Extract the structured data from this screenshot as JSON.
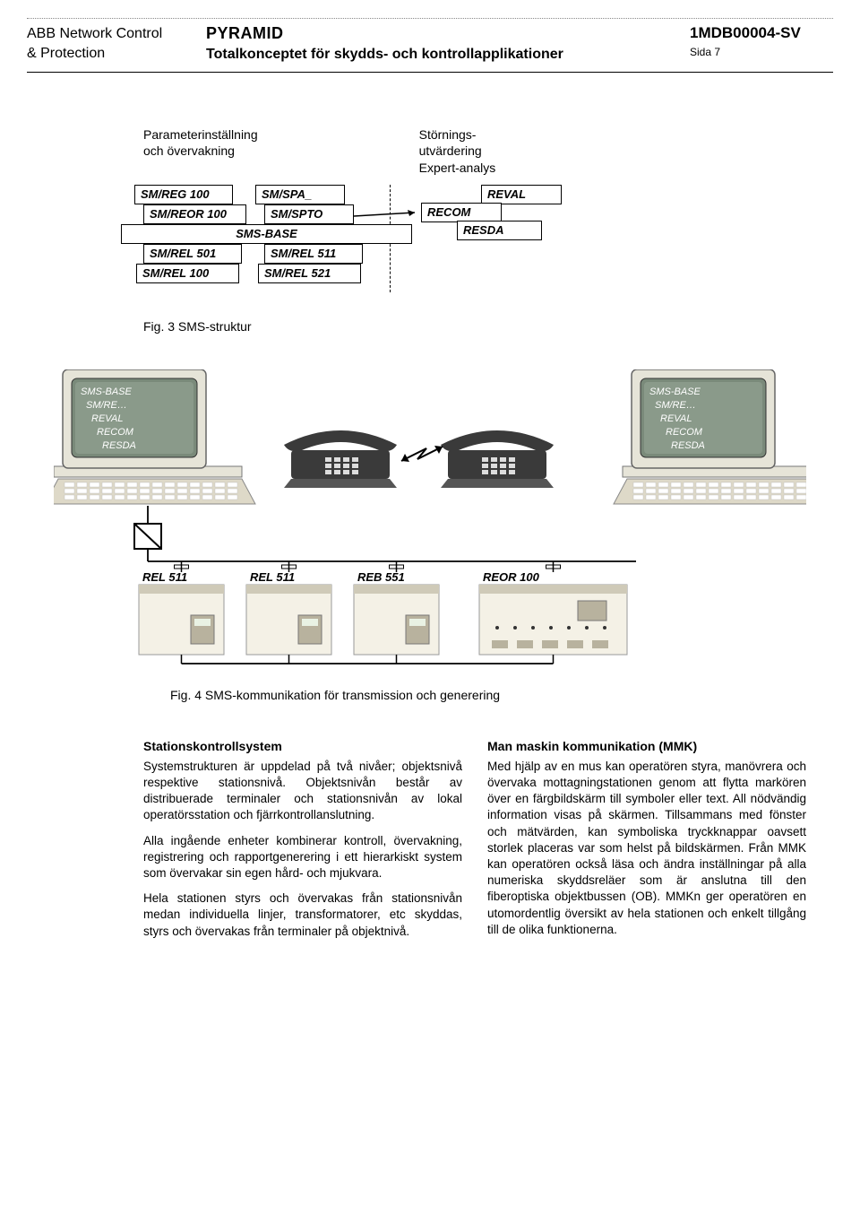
{
  "header": {
    "left_line1": "ABB Network Control",
    "left_line2": "& Protection",
    "center_line1": "PYRAMID",
    "center_line2": "Totalkonceptet för skydds- och kontrollapplikationer",
    "docno": "1MDB00004-SV",
    "page": "Sida 7"
  },
  "fig3": {
    "label_left_1": "Parameterinställning",
    "label_left_2": "och övervakning",
    "label_right_1": "Störnings-",
    "label_right_2": "utvärdering",
    "label_right_3": "Expert-analys",
    "cells": {
      "c1": "SM/REG 100",
      "c2": "SM/SPA_",
      "c3": "REVAL",
      "c4": "SM/REOR 100",
      "c5": "SM/SPTO",
      "c6": "RECOM",
      "c7": "SMS-BASE",
      "c8": "RESDA",
      "c9": "SM/REL 501",
      "c10": "SM/REL 511",
      "c11": "SM/REL 100",
      "c12": "SM/REL 521"
    },
    "caption": "Fig. 3 SMS-struktur"
  },
  "fig4": {
    "monitor_lines": [
      "SMS-BASE",
      "SM/RE…",
      "REVAL",
      "RECOM",
      "RESDA"
    ],
    "devices": [
      "REL 511",
      "REL 511",
      "REB 551",
      "REOR 100"
    ],
    "caption": "Fig. 4 SMS-kommunikation för transmission och generering",
    "colors": {
      "screen_bg": "#7a8a7a",
      "screen_glow": "#a9b8a8",
      "monitor_body": "#e6e4d8",
      "keyboard": "#ded9c8",
      "phone": "#3a3a3a",
      "device_body": "#f4f1e6",
      "device_accent": "#cfcab8",
      "device_panel": "#b8b29e",
      "line": "#000000"
    }
  },
  "body": {
    "left_title": "Stationskontrollsystem",
    "left_p1": "Systemstrukturen är uppdelad på två nivåer; objektsnivå respektive stationsnivå. Objektsnivån består av distribuerade terminaler och stationsnivån av lokal operatörsstation och fjärrkontrollanslutning.",
    "left_p2": "Alla ingående enheter kombinerar kontroll, övervakning, registrering och rapportgenerering i ett hierarkiskt system som övervakar sin egen hård- och mjukvara.",
    "left_p3": "Hela stationen styrs och övervakas från stationsnivån medan individuella linjer, transformatorer, etc skyddas, styrs och övervakas från terminaler på objektnivå.",
    "right_title": "Man maskin kommunikation (MMK)",
    "right_p1": "Med hjälp av en mus kan operatören styra, manövrera och övervaka mottagningstationen genom att flytta markören över en färgbildskärm till symboler eller text. All nödvändig information visas på skärmen. Tillsammans med fönster och mätvärden, kan symboliska tryckknappar oavsett storlek placeras var som helst på bildskärmen. Från MMK kan operatören också läsa och ändra inställningar på alla numeriska skyddsreläer som är anslutna till den fiberoptiska objektbussen (OB). MMKn ger operatören en utomordentlig översikt av hela stationen och enkelt tillgång till de olika funktionerna."
  }
}
